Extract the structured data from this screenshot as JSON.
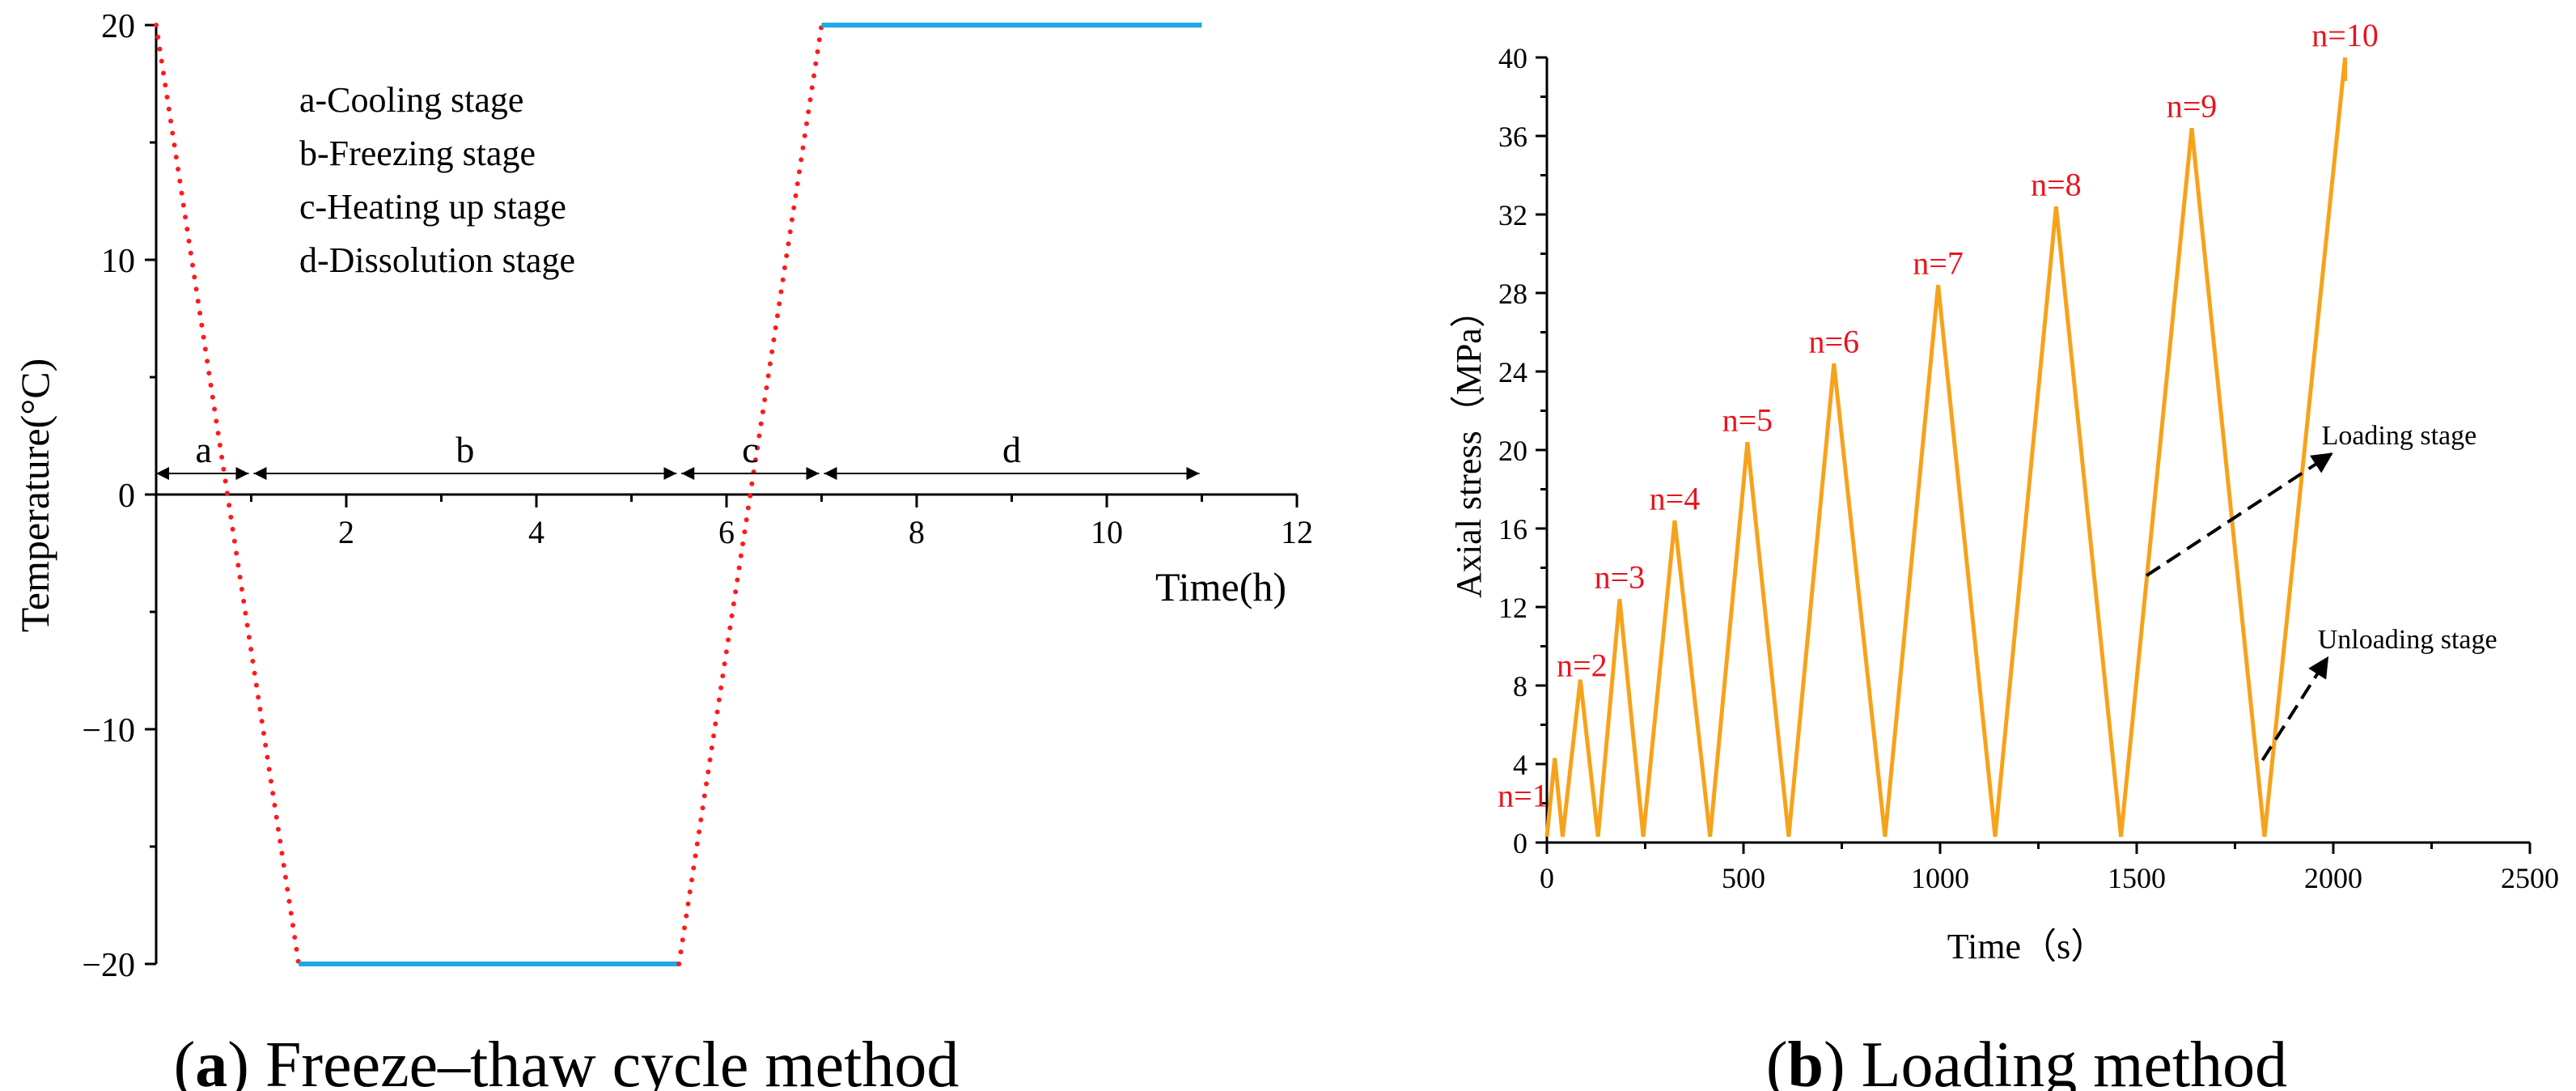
{
  "colors": {
    "axis": "#000000",
    "dotted": "#ff1a1a",
    "cyan": "#1fa9e6",
    "orange": "#f7a21b",
    "red_label": "#e8141e"
  },
  "chart_data": [
    {
      "type": "line",
      "title": "Freeze–thaw cycle method",
      "panel_letter": "a",
      "panel_open": "(",
      "panel_close": ")",
      "xlabel": "Time(h)",
      "ylabel": "Temperature(°C)",
      "xlim": [
        0,
        12
      ],
      "ylim": [
        -20,
        20
      ],
      "xticks": [
        2,
        4,
        6,
        8,
        10,
        12
      ],
      "yticks": [
        -20,
        -10,
        0,
        10,
        20
      ],
      "ytick_labels": [
        "−20",
        "−10",
        "0",
        "10",
        "20"
      ],
      "series": [
        {
          "name": "cooling",
          "style": "dotted",
          "x": [
            0,
            1.5
          ],
          "y": [
            20,
            -20
          ]
        },
        {
          "name": "freezing",
          "style": "solid",
          "x": [
            1.5,
            5.5
          ],
          "y": [
            -20,
            -20
          ]
        },
        {
          "name": "heating",
          "style": "dotted",
          "x": [
            5.5,
            7
          ],
          "y": [
            -20,
            20
          ]
        },
        {
          "name": "dissolution",
          "style": "solid",
          "x": [
            7,
            11
          ],
          "y": [
            20,
            20
          ]
        }
      ],
      "stages": [
        {
          "label": "a",
          "start": 0,
          "end": 1
        },
        {
          "label": "b",
          "start": 1,
          "end": 5.5
        },
        {
          "label": "c",
          "start": 5.5,
          "end": 7
        },
        {
          "label": "d",
          "start": 7,
          "end": 11
        }
      ],
      "legend": [
        "a-Cooling stage",
        "b-Freezing stage",
        "c-Heating up stage",
        "d-Dissolution stage"
      ]
    },
    {
      "type": "line",
      "title": "Loading method",
      "panel_letter": "b",
      "panel_open": "(",
      "panel_close": ")",
      "xlabel": "Time（s）",
      "ylabel": "Axial stress（MPa）",
      "xlim": [
        0,
        2500
      ],
      "ylim": [
        0,
        40
      ],
      "xticks": [
        0,
        500,
        1000,
        1500,
        2000,
        2500
      ],
      "yticks": [
        0,
        4,
        8,
        12,
        16,
        20,
        24,
        28,
        32,
        36,
        40
      ],
      "series": [
        {
          "name": "axial stress",
          "x": [
            0,
            20,
            40,
            85,
            130,
            185,
            245,
            325,
            415,
            510,
            615,
            730,
            860,
            995,
            1140,
            1295,
            1460,
            1640,
            1825,
            2030,
            2030
          ],
          "y": [
            0.3,
            4.3,
            0.3,
            8.3,
            0.3,
            12.4,
            0.3,
            16.4,
            0.3,
            20.4,
            0.3,
            24.4,
            0.3,
            28.4,
            0.3,
            32.4,
            0.3,
            36.4,
            0.3,
            40,
            38.8
          ]
        }
      ],
      "cycle_labels": [
        {
          "text": "n=1",
          "x": 20,
          "y": 4.3
        },
        {
          "text": "n=2",
          "x": 85,
          "y": 8.3
        },
        {
          "text": "n=3",
          "x": 185,
          "y": 12.4
        },
        {
          "text": "n=4",
          "x": 325,
          "y": 16.4
        },
        {
          "text": "n=5",
          "x": 510,
          "y": 20.4
        },
        {
          "text": "n=6",
          "x": 730,
          "y": 24.4
        },
        {
          "text": "n=7",
          "x": 995,
          "y": 28.4
        },
        {
          "text": "n=8",
          "x": 1295,
          "y": 32.4
        },
        {
          "text": "n=9",
          "x": 1640,
          "y": 36.4
        },
        {
          "text": "n=10",
          "x": 2030,
          "y": 40
        }
      ],
      "annotations": [
        {
          "text": "Loading stage",
          "from": [
            1525,
            13.6
          ],
          "to": [
            1995,
            19.8
          ]
        },
        {
          "text": "Unloading stage",
          "from": [
            1820,
            4.2
          ],
          "to": [
            1985,
            9.4
          ]
        }
      ]
    }
  ]
}
